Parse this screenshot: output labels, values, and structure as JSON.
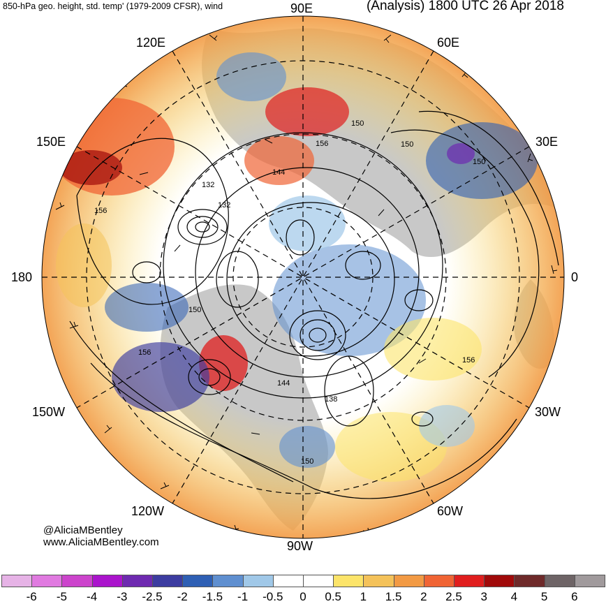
{
  "header": {
    "title_left": "850-hPa geo. height, std. temp' (1979-2009 CFSR), wind",
    "title_right": "(Analysis) 1800 UTC 26 Apr 2018"
  },
  "map": {
    "projection": "north-polar-stereographic",
    "longitude_labels": {
      "deg_90e": "90E",
      "deg_60e": "60E",
      "deg_30e": "30E",
      "deg_0": "0",
      "deg_30w": "30W",
      "deg_60w": "60W",
      "deg_90w": "90W",
      "deg_120w": "120W",
      "deg_150w": "150W",
      "deg_180": "180",
      "deg_150e": "150E",
      "deg_120e": "120E"
    },
    "contour_labels": {
      "c1": "150",
      "c2": "156",
      "c3": "150",
      "c4": "150",
      "c5": "144",
      "c6": "132",
      "c7": "132",
      "c8": "156",
      "c9": "150",
      "c10": "156",
      "c11": "144",
      "c12": "138",
      "c13": "156",
      "c14": "150"
    },
    "land_color": "#c8c8c8",
    "background_color": "#ffffff"
  },
  "credits": {
    "handle": "@AliciaMBentley",
    "website": "www.AliciaMBentley.com"
  },
  "colorbar": {
    "ticks": [
      "-6",
      "-5",
      "-4",
      "-3",
      "-2.5",
      "-2",
      "-1.5",
      "-1",
      "-0.5",
      "0",
      "0.5",
      "1",
      "1.5",
      "2",
      "2.5",
      "3",
      "4",
      "5",
      "6"
    ],
    "colors": [
      "#e6b3e6",
      "#e07ae0",
      "#cc44cc",
      "#aa14cc",
      "#6e2ab0",
      "#3c3ca0",
      "#2e5fb4",
      "#5f8fd0",
      "#a0c8e8",
      "#ffffff",
      "#ffffff",
      "#fce46a",
      "#f4c25a",
      "#f29a44",
      "#f06434",
      "#e01e1e",
      "#a00a0a",
      "#6e2a2a",
      "#6e6466",
      "#a09a9c"
    ]
  }
}
